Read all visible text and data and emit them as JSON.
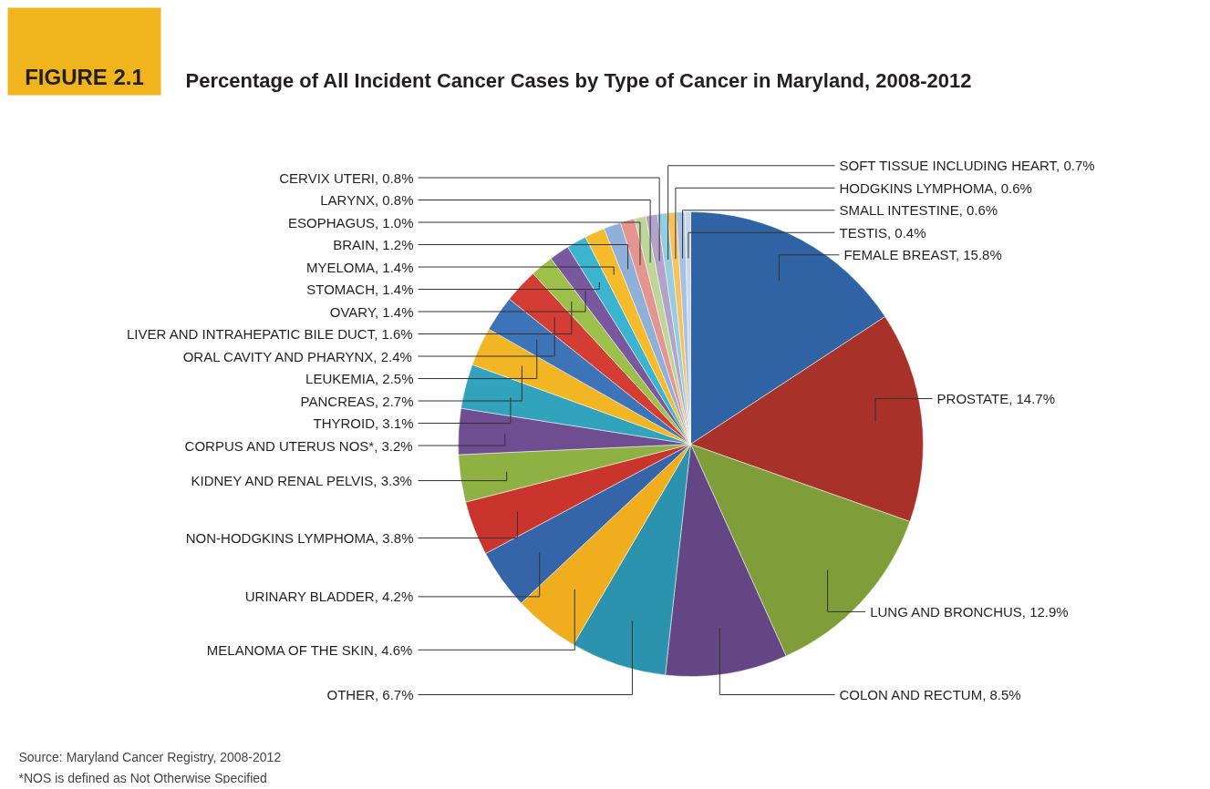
{
  "chart_data": {
    "type": "pie",
    "title": "Percentage of All Incident Cancer Cases  by Type of Cancer in Maryland, 2008-2012",
    "categories": [
      "FEMALE BREAST",
      "PROSTATE",
      "LUNG AND BRONCHUS",
      "COLON AND RECTUM",
      "OTHER",
      "MELANOMA OF THE SKIN",
      "URINARY BLADDER",
      "NON-HODGKINS LYMPHOMA",
      "KIDNEY AND RENAL PELVIS",
      "CORPUS AND UTERUS NOS*",
      "THYROID",
      "PANCREAS",
      "LEUKEMIA",
      "ORAL CAVITY AND PHARYNX",
      "LIVER AND INTRAHEPATIC BILE DUCT",
      "OVARY",
      "STOMACH",
      "MYELOMA",
      "BRAIN",
      "ESOPHAGUS",
      "LARYNX",
      "CERVIX UTERI",
      "SOFT TISSUE INCLUDING HEART",
      "HODGKINS LYMPHOMA",
      "SMALL INTESTINE",
      "TESTIS"
    ],
    "values": [
      15.8,
      14.7,
      12.9,
      8.5,
      6.7,
      4.6,
      4.2,
      3.8,
      3.3,
      3.2,
      3.1,
      2.7,
      2.5,
      2.4,
      1.6,
      1.4,
      1.4,
      1.4,
      1.2,
      1.0,
      0.8,
      0.8,
      0.7,
      0.6,
      0.6,
      0.4
    ],
    "value_labels": [
      "15.8%",
      "14.7%",
      "12.9%",
      "8.5%",
      "6.7%",
      "4.6%",
      "4.2%",
      "3.8%",
      "3.3%",
      "3.2%",
      "3.1%",
      "2.7%",
      "2.5%",
      "2.4%",
      "1.6%",
      "1.4%",
      "1.4%",
      "1.4%",
      "1.2%",
      "1.0%",
      "0.8%",
      "0.8%",
      "0.7%",
      "0.6%",
      "0.6%",
      "0.4%"
    ],
    "colors": [
      "#2f63a3",
      "#a8322a",
      "#7f9e3a",
      "#654684",
      "#2b93ad",
      "#f0ad1e",
      "#3565a8",
      "#c9352c",
      "#8fb042",
      "#6e4d91",
      "#31a3bd",
      "#f2b524",
      "#3d74b8",
      "#d43d33",
      "#9cc04a",
      "#7a58a0",
      "#3bb4d0",
      "#f5bb2c",
      "#8fb0d8",
      "#e59590",
      "#bfd69a",
      "#b3a3c9",
      "#96cde0",
      "#f7c25e",
      "#a9c1e0",
      "#c9d7ec"
    ],
    "annotations": [
      "FIGURE 2.1",
      "Source: Maryland Cancer Registry, 2008-2012",
      "*NOS is defined as Not Otherwise Specified"
    ]
  }
}
